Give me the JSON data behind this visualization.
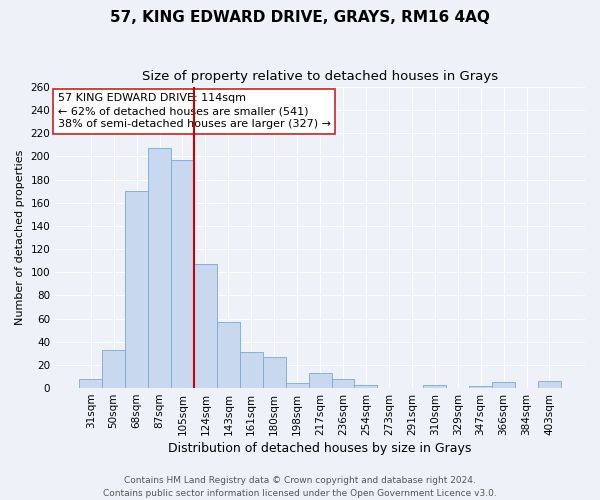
{
  "title": "57, KING EDWARD DRIVE, GRAYS, RM16 4AQ",
  "subtitle": "Size of property relative to detached houses in Grays",
  "xlabel": "Distribution of detached houses by size in Grays",
  "ylabel": "Number of detached properties",
  "bar_labels": [
    "31sqm",
    "50sqm",
    "68sqm",
    "87sqm",
    "105sqm",
    "124sqm",
    "143sqm",
    "161sqm",
    "180sqm",
    "198sqm",
    "217sqm",
    "236sqm",
    "254sqm",
    "273sqm",
    "291sqm",
    "310sqm",
    "329sqm",
    "347sqm",
    "366sqm",
    "384sqm",
    "403sqm"
  ],
  "bar_heights": [
    8,
    33,
    170,
    207,
    197,
    107,
    57,
    31,
    27,
    4,
    13,
    8,
    3,
    0,
    0,
    3,
    0,
    2,
    5,
    0,
    6
  ],
  "bar_color": "#c8d8ee",
  "bar_edge_color": "#7aaad0",
  "vline_x_index": 5,
  "vline_color": "#cc0000",
  "annotation_lines": [
    "57 KING EDWARD DRIVE: 114sqm",
    "← 62% of detached houses are smaller (541)",
    "38% of semi-detached houses are larger (327) →"
  ],
  "ylim": [
    0,
    260
  ],
  "yticks": [
    0,
    20,
    40,
    60,
    80,
    100,
    120,
    140,
    160,
    180,
    200,
    220,
    240,
    260
  ],
  "footer_line1": "Contains HM Land Registry data © Crown copyright and database right 2024.",
  "footer_line2": "Contains public sector information licensed under the Open Government Licence v3.0.",
  "title_fontsize": 11,
  "subtitle_fontsize": 9.5,
  "xlabel_fontsize": 9,
  "ylabel_fontsize": 8,
  "tick_fontsize": 7.5,
  "footer_fontsize": 6.5,
  "annotation_fontsize": 8,
  "bg_color": "#eef2f8",
  "grid_color": "#ffffff"
}
